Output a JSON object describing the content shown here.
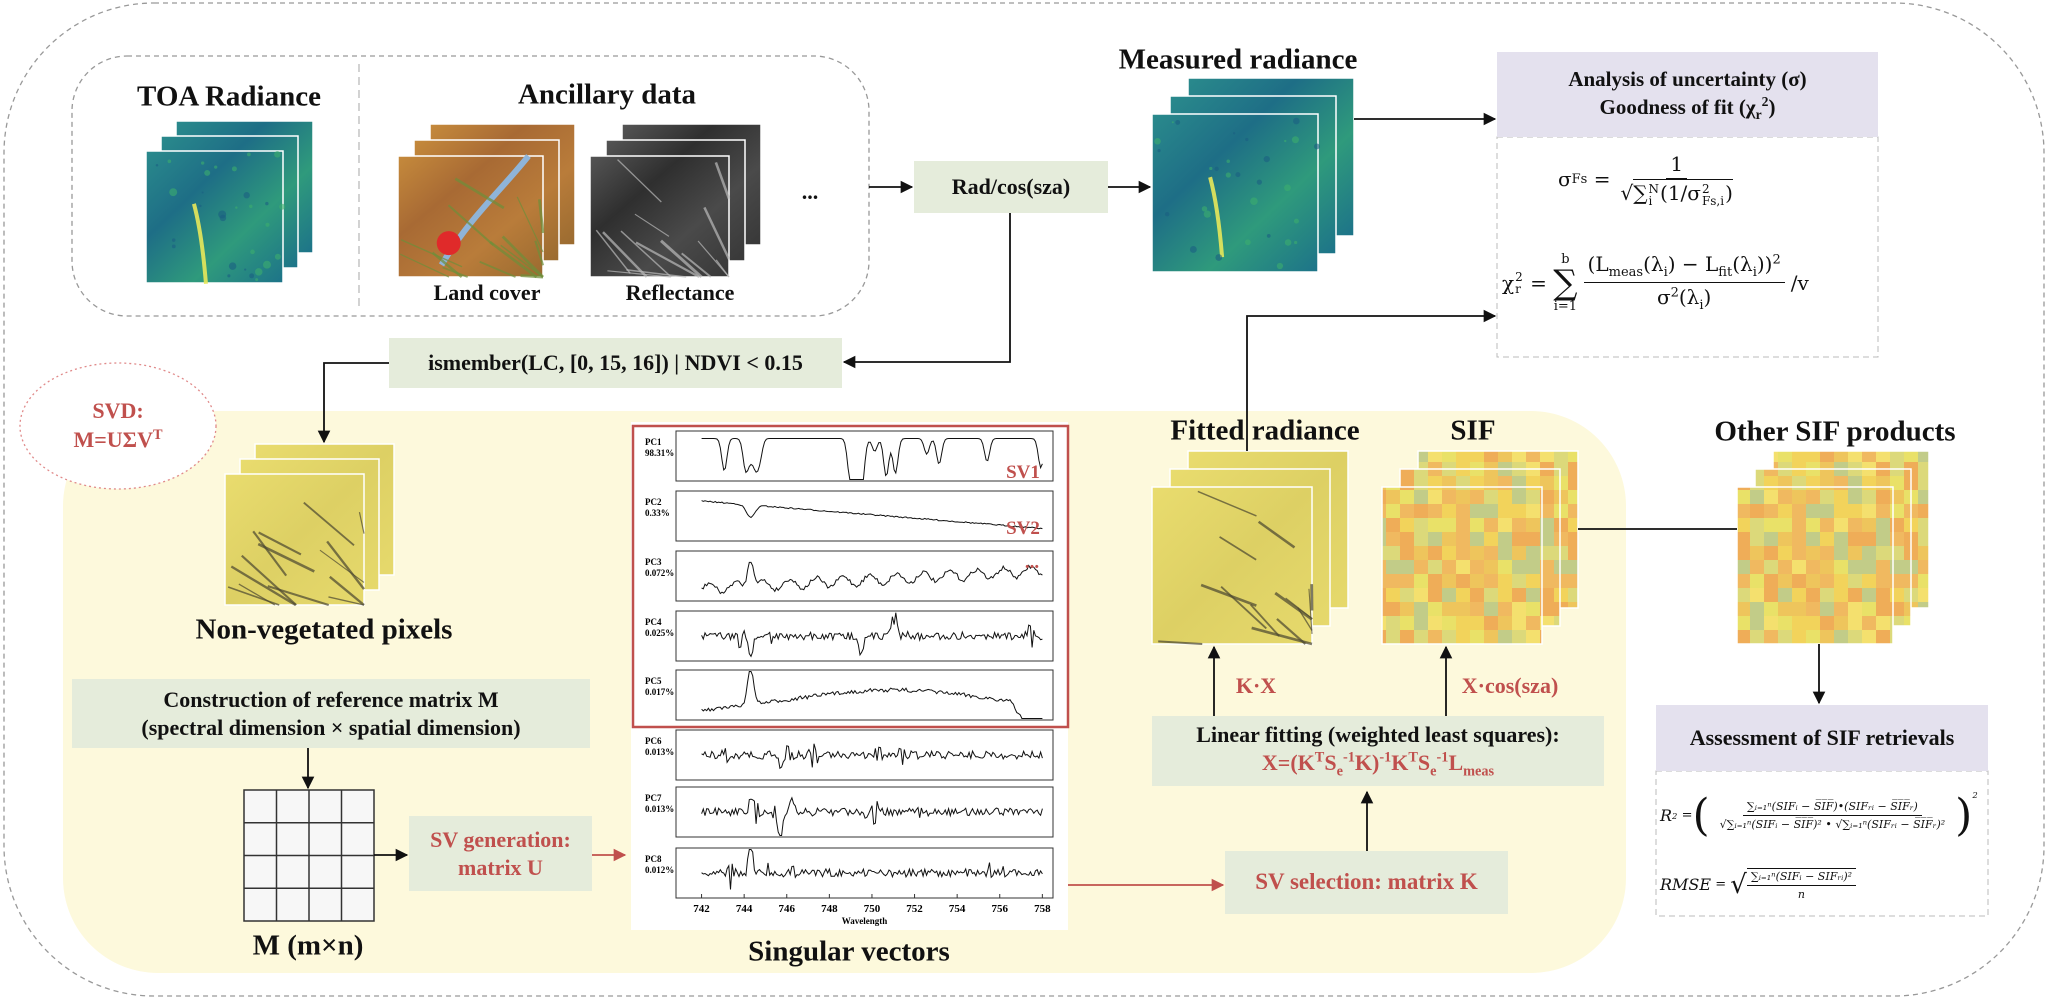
{
  "inputs": {
    "toa_title": "TOA Radiance",
    "ancillary_title": "Ancillary data",
    "land_cover": "Land cover",
    "reflectance": "Reflectance",
    "more": "..."
  },
  "normalize": "Rad/cos(sza)",
  "measured_radiance": "Measured radiance",
  "mask": "ismember(LC, [0, 15, 16]) | NDVI < 0.15",
  "svd": {
    "label": "SVD:",
    "equation": "M=UΣV",
    "sup": "T"
  },
  "non_vegetated": "Non-vegetated pixels",
  "construction": [
    "Construction of reference matrix M",
    "(spectral dimension × spatial dimension)"
  ],
  "matrix_label": "M (m×n)",
  "sv_generation": [
    "SV generation:",
    "matrix U"
  ],
  "singular_vectors": {
    "title": "Singular vectors",
    "sv_labels": [
      "SV1",
      "SV2",
      "..."
    ],
    "panels": [
      {
        "name": "PC1",
        "share": "98.31%"
      },
      {
        "name": "PC2",
        "share": "0.33%"
      },
      {
        "name": "PC3",
        "share": "0.072%"
      },
      {
        "name": "PC4",
        "share": "0.025%"
      },
      {
        "name": "PC5",
        "share": "0.017%"
      },
      {
        "name": "PC6",
        "share": "0.013%"
      },
      {
        "name": "PC7",
        "share": "0.013%"
      },
      {
        "name": "PC8",
        "share": "0.012%"
      }
    ],
    "xlim": [
      740.8,
      758.5
    ],
    "xticks": [
      742,
      744,
      746,
      748,
      750,
      752,
      754,
      756,
      758
    ],
    "xlabel": "Wavelength"
  },
  "sv_selection": "SV selection: matrix K",
  "linear_fitting": {
    "title": "Linear fitting (weighted least squares):",
    "equation": [
      "X=(K",
      "T",
      "S",
      "e",
      "-1",
      "K)",
      "-1",
      "K",
      "T",
      "S",
      "e",
      "-1",
      "L",
      "meas"
    ]
  },
  "kx": "K·X",
  "xcos": "X·cos(sza)",
  "fitted_radiance": "Fitted radiance",
  "sif": "SIF",
  "other_sif": "Other SIF products",
  "uncertainty": {
    "title": "Analysis of uncertainty (σ)",
    "fit": [
      "Goodness of fit (χ",
      "r",
      "2",
      ")"
    ],
    "sigma_formula": {
      "lhs": "σ",
      "lhs_sub": "Fs",
      "eq": "=",
      "num": "1",
      "root": "√",
      "sum": "∑",
      "sum_sub": "i",
      "sum_sup": "N",
      "term": "(1/σ",
      "term_sup": "2",
      "term_sub": "Fs,i",
      "close": ")"
    },
    "chi_formula": {
      "lhs": "χ",
      "lhs_sup": "2",
      "lhs_sub": "r",
      "eq": "=",
      "sum": "∑",
      "sum_sub": "i=1",
      "sum_sup": "b",
      "num": [
        "(L",
        "meas",
        "(λ",
        "i",
        ") − L",
        "fit",
        "(λ",
        "i",
        "))",
        "2"
      ],
      "den": [
        "σ",
        "2",
        "(λ",
        "i",
        ")"
      ],
      "tail": "/v"
    }
  },
  "assessment": {
    "title": "Assessment of SIF retrievals",
    "r2": {
      "lhs": "R",
      "lhs_sup": "2",
      "eq": "=",
      "open": "(",
      "num": "∑ᵢ₌₁ⁿ(SIFᵢ − S̅I̅F̅)•(SIFᵣᵢ − S̅I̅F̅ᵣ)",
      "den": "√∑ᵢ₌₁ⁿ(SIFᵢ − S̅I̅F̅)² • √∑ᵢ₌₁ⁿ(SIFᵣᵢ − S̅I̅F̅ᵣ)²",
      "close": ")",
      "sup": "2"
    },
    "rmse": {
      "lhs": "RMSE",
      "eq": "=",
      "root": "√",
      "num": "∑ᵢ₌₁ⁿ(SIFᵢ − SIFᵣᵢ)²",
      "den": "n"
    }
  }
}
